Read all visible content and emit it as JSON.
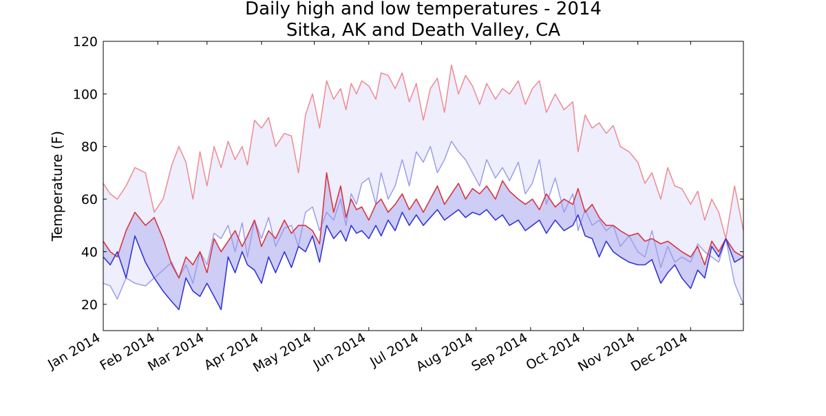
{
  "chart_data": {
    "type": "line",
    "title": "Daily high and low temperatures - 2014",
    "subtitle": "Sitka, AK and Death Valley, CA",
    "xlabel": "",
    "ylabel": "Temperature (F)",
    "xlim": [
      "2014-01-01",
      "2014-12-31"
    ],
    "ylim": [
      10,
      120
    ],
    "yticks": [
      20,
      40,
      60,
      80,
      100,
      120
    ],
    "xticks": [
      {
        "date": "2014-01-01",
        "label": "Jan 2014"
      },
      {
        "date": "2014-02-01",
        "label": "Feb 2014"
      },
      {
        "date": "2014-03-01",
        "label": "Mar 2014"
      },
      {
        "date": "2014-04-01",
        "label": "Apr 2014"
      },
      {
        "date": "2014-05-01",
        "label": "May 2014"
      },
      {
        "date": "2014-06-01",
        "label": "Jun 2014"
      },
      {
        "date": "2014-07-01",
        "label": "Jul 2014"
      },
      {
        "date": "2014-08-01",
        "label": "Aug 2014"
      },
      {
        "date": "2014-09-01",
        "label": "Sep 2014"
      },
      {
        "date": "2014-10-01",
        "label": "Oct 2014"
      },
      {
        "date": "2014-11-01",
        "label": "Nov 2014"
      },
      {
        "date": "2014-12-01",
        "label": "Dec 2014"
      }
    ],
    "grid": false,
    "colors": {
      "dv_high": "#ee8a90",
      "dv_low": "#9c9ceb",
      "dv_fill": "#eeeefc",
      "sitka_high": "#d9343f",
      "sitka_low": "#3434d6",
      "sitka_fill": "#cdcdf5"
    },
    "series": [
      {
        "key": "dv_high",
        "x": [
          "2014-01-01",
          "2014-01-05",
          "2014-01-09",
          "2014-01-14",
          "2014-01-19",
          "2014-01-25",
          "2014-01-30",
          "2014-02-04",
          "2014-02-09",
          "2014-02-13",
          "2014-02-17",
          "2014-02-21",
          "2014-02-25",
          "2014-03-01",
          "2014-03-05",
          "2014-03-09",
          "2014-03-13",
          "2014-03-17",
          "2014-03-21",
          "2014-03-24",
          "2014-03-28",
          "2014-04-01",
          "2014-04-05",
          "2014-04-09",
          "2014-04-14",
          "2014-04-18",
          "2014-04-22",
          "2014-04-26",
          "2014-04-30",
          "2014-05-04",
          "2014-05-08",
          "2014-05-12",
          "2014-05-16",
          "2014-05-19",
          "2014-05-22",
          "2014-05-25",
          "2014-05-28",
          "2014-06-01",
          "2014-06-05",
          "2014-06-08",
          "2014-06-12",
          "2014-06-16",
          "2014-06-20",
          "2014-06-24",
          "2014-06-28",
          "2014-07-02",
          "2014-07-06",
          "2014-07-10",
          "2014-07-14",
          "2014-07-18",
          "2014-07-22",
          "2014-07-26",
          "2014-07-30",
          "2014-08-03",
          "2014-08-07",
          "2014-08-12",
          "2014-08-16",
          "2014-08-20",
          "2014-08-25",
          "2014-08-29",
          "2014-09-02",
          "2014-09-06",
          "2014-09-10",
          "2014-09-15",
          "2014-09-20",
          "2014-09-25",
          "2014-09-28",
          "2014-10-02",
          "2014-10-06",
          "2014-10-10",
          "2014-10-14",
          "2014-10-18",
          "2014-10-22",
          "2014-10-27",
          "2014-11-01",
          "2014-11-05",
          "2014-11-09",
          "2014-11-14",
          "2014-11-18",
          "2014-11-22",
          "2014-11-26",
          "2014-12-01",
          "2014-12-05",
          "2014-12-09",
          "2014-12-13",
          "2014-12-17",
          "2014-12-21",
          "2014-12-26",
          "2014-12-31"
        ],
        "y": [
          66,
          62,
          60,
          65,
          72,
          70,
          55,
          60,
          73,
          80,
          74,
          60,
          78,
          65,
          80,
          72,
          82,
          75,
          80,
          73,
          90,
          87,
          91,
          80,
          85,
          84,
          70,
          92,
          100,
          87,
          105,
          98,
          102,
          94,
          104,
          100,
          105,
          103,
          98,
          108,
          107,
          102,
          108,
          97,
          104,
          90,
          102,
          106,
          93,
          111,
          100,
          107,
          103,
          96,
          104,
          98,
          102,
          100,
          105,
          96,
          102,
          105,
          93,
          100,
          94,
          97,
          78,
          92,
          87,
          89,
          85,
          88,
          80,
          78,
          74,
          66,
          70,
          60,
          72,
          65,
          64,
          58,
          63,
          52,
          60,
          55,
          45,
          65,
          48
        ]
      },
      {
        "key": "dv_low",
        "x": [
          "2014-01-01",
          "2014-01-05",
          "2014-01-09",
          "2014-01-14",
          "2014-01-19",
          "2014-01-25",
          "2014-01-30",
          "2014-02-04",
          "2014-02-09",
          "2014-02-13",
          "2014-02-17",
          "2014-02-21",
          "2014-02-25",
          "2014-03-01",
          "2014-03-05",
          "2014-03-09",
          "2014-03-13",
          "2014-03-17",
          "2014-03-21",
          "2014-03-24",
          "2014-03-28",
          "2014-04-01",
          "2014-04-05",
          "2014-04-09",
          "2014-04-14",
          "2014-04-18",
          "2014-04-22",
          "2014-04-26",
          "2014-04-30",
          "2014-05-04",
          "2014-05-08",
          "2014-05-12",
          "2014-05-16",
          "2014-05-19",
          "2014-05-22",
          "2014-05-25",
          "2014-05-28",
          "2014-06-01",
          "2014-06-05",
          "2014-06-08",
          "2014-06-12",
          "2014-06-16",
          "2014-06-20",
          "2014-06-24",
          "2014-06-28",
          "2014-07-02",
          "2014-07-06",
          "2014-07-10",
          "2014-07-14",
          "2014-07-18",
          "2014-07-22",
          "2014-07-26",
          "2014-07-30",
          "2014-08-03",
          "2014-08-07",
          "2014-08-12",
          "2014-08-16",
          "2014-08-20",
          "2014-08-25",
          "2014-08-29",
          "2014-09-02",
          "2014-09-06",
          "2014-09-10",
          "2014-09-15",
          "2014-09-20",
          "2014-09-25",
          "2014-09-28",
          "2014-10-02",
          "2014-10-06",
          "2014-10-10",
          "2014-10-14",
          "2014-10-18",
          "2014-10-22",
          "2014-10-27",
          "2014-11-01",
          "2014-11-05",
          "2014-11-09",
          "2014-11-14",
          "2014-11-18",
          "2014-11-22",
          "2014-11-26",
          "2014-12-01",
          "2014-12-05",
          "2014-12-09",
          "2014-12-13",
          "2014-12-17",
          "2014-12-21",
          "2014-12-26",
          "2014-12-31"
        ],
        "y": [
          28,
          27,
          22,
          30,
          28,
          27,
          30,
          33,
          36,
          30,
          35,
          28,
          40,
          35,
          47,
          45,
          50,
          40,
          51,
          38,
          52,
          45,
          53,
          42,
          49,
          50,
          42,
          55,
          57,
          48,
          55,
          52,
          60,
          50,
          62,
          58,
          66,
          68,
          58,
          70,
          60,
          65,
          75,
          65,
          78,
          74,
          80,
          70,
          75,
          82,
          78,
          75,
          70,
          65,
          75,
          68,
          72,
          67,
          74,
          62,
          66,
          75,
          58,
          68,
          55,
          62,
          48,
          56,
          50,
          52,
          48,
          50,
          42,
          46,
          40,
          38,
          48,
          34,
          42,
          36,
          38,
          36,
          43,
          40,
          38,
          36,
          45,
          28,
          20
        ]
      },
      {
        "key": "sitka_high",
        "x": [
          "2014-01-01",
          "2014-01-05",
          "2014-01-09",
          "2014-01-14",
          "2014-01-19",
          "2014-01-25",
          "2014-01-30",
          "2014-02-04",
          "2014-02-09",
          "2014-02-13",
          "2014-02-17",
          "2014-02-21",
          "2014-02-25",
          "2014-03-01",
          "2014-03-05",
          "2014-03-09",
          "2014-03-13",
          "2014-03-17",
          "2014-03-21",
          "2014-03-24",
          "2014-03-28",
          "2014-04-01",
          "2014-04-05",
          "2014-04-09",
          "2014-04-14",
          "2014-04-18",
          "2014-04-22",
          "2014-04-26",
          "2014-04-30",
          "2014-05-04",
          "2014-05-08",
          "2014-05-12",
          "2014-05-16",
          "2014-05-19",
          "2014-05-22",
          "2014-05-25",
          "2014-05-28",
          "2014-06-01",
          "2014-06-05",
          "2014-06-08",
          "2014-06-12",
          "2014-06-16",
          "2014-06-20",
          "2014-06-24",
          "2014-06-28",
          "2014-07-02",
          "2014-07-06",
          "2014-07-10",
          "2014-07-14",
          "2014-07-18",
          "2014-07-22",
          "2014-07-26",
          "2014-07-30",
          "2014-08-03",
          "2014-08-07",
          "2014-08-12",
          "2014-08-16",
          "2014-08-20",
          "2014-08-25",
          "2014-08-29",
          "2014-09-02",
          "2014-09-06",
          "2014-09-10",
          "2014-09-15",
          "2014-09-20",
          "2014-09-25",
          "2014-09-28",
          "2014-10-02",
          "2014-10-06",
          "2014-10-10",
          "2014-10-14",
          "2014-10-18",
          "2014-10-22",
          "2014-10-27",
          "2014-11-01",
          "2014-11-05",
          "2014-11-09",
          "2014-11-14",
          "2014-11-18",
          "2014-11-22",
          "2014-11-26",
          "2014-12-01",
          "2014-12-05",
          "2014-12-09",
          "2014-12-13",
          "2014-12-17",
          "2014-12-21",
          "2014-12-26",
          "2014-12-31"
        ],
        "y": [
          44,
          40,
          38,
          48,
          55,
          50,
          53,
          45,
          35,
          30,
          38,
          35,
          40,
          32,
          45,
          40,
          44,
          48,
          42,
          46,
          52,
          42,
          48,
          45,
          52,
          47,
          50,
          50,
          48,
          43,
          70,
          55,
          65,
          53,
          60,
          56,
          57,
          52,
          58,
          60,
          55,
          58,
          62,
          56,
          60,
          55,
          60,
          65,
          58,
          62,
          66,
          60,
          64,
          62,
          65,
          60,
          67,
          63,
          60,
          58,
          60,
          56,
          62,
          57,
          60,
          58,
          64,
          55,
          58,
          53,
          50,
          50,
          48,
          46,
          47,
          44,
          45,
          43,
          44,
          42,
          40,
          38,
          42,
          35,
          44,
          40,
          45,
          40,
          38
        ]
      },
      {
        "key": "sitka_low",
        "x": [
          "2014-01-01",
          "2014-01-05",
          "2014-01-09",
          "2014-01-14",
          "2014-01-19",
          "2014-01-25",
          "2014-01-30",
          "2014-02-04",
          "2014-02-09",
          "2014-02-13",
          "2014-02-17",
          "2014-02-21",
          "2014-02-25",
          "2014-03-01",
          "2014-03-05",
          "2014-03-09",
          "2014-03-13",
          "2014-03-17",
          "2014-03-21",
          "2014-03-24",
          "2014-03-28",
          "2014-04-01",
          "2014-04-05",
          "2014-04-09",
          "2014-04-14",
          "2014-04-18",
          "2014-04-22",
          "2014-04-26",
          "2014-04-30",
          "2014-05-04",
          "2014-05-08",
          "2014-05-12",
          "2014-05-16",
          "2014-05-19",
          "2014-05-22",
          "2014-05-25",
          "2014-05-28",
          "2014-06-01",
          "2014-06-05",
          "2014-06-08",
          "2014-06-12",
          "2014-06-16",
          "2014-06-20",
          "2014-06-24",
          "2014-06-28",
          "2014-07-02",
          "2014-07-06",
          "2014-07-10",
          "2014-07-14",
          "2014-07-18",
          "2014-07-22",
          "2014-07-26",
          "2014-07-30",
          "2014-08-03",
          "2014-08-07",
          "2014-08-12",
          "2014-08-16",
          "2014-08-20",
          "2014-08-25",
          "2014-08-29",
          "2014-09-02",
          "2014-09-06",
          "2014-09-10",
          "2014-09-15",
          "2014-09-20",
          "2014-09-25",
          "2014-09-28",
          "2014-10-02",
          "2014-10-06",
          "2014-10-10",
          "2014-10-14",
          "2014-10-18",
          "2014-10-22",
          "2014-10-27",
          "2014-11-01",
          "2014-11-05",
          "2014-11-09",
          "2014-11-14",
          "2014-11-18",
          "2014-11-22",
          "2014-11-26",
          "2014-12-01",
          "2014-12-05",
          "2014-12-09",
          "2014-12-13",
          "2014-12-17",
          "2014-12-21",
          "2014-12-26",
          "2014-12-31"
        ],
        "y": [
          38,
          35,
          40,
          30,
          46,
          36,
          30,
          25,
          21,
          18,
          30,
          25,
          23,
          28,
          23,
          18,
          38,
          32,
          40,
          35,
          33,
          28,
          38,
          32,
          40,
          34,
          42,
          40,
          46,
          36,
          50,
          45,
          48,
          44,
          50,
          47,
          48,
          45,
          50,
          46,
          52,
          48,
          55,
          50,
          54,
          50,
          53,
          56,
          52,
          54,
          56,
          53,
          55,
          54,
          56,
          52,
          54,
          50,
          52,
          48,
          50,
          52,
          47,
          52,
          48,
          50,
          54,
          46,
          45,
          38,
          44,
          40,
          38,
          36,
          35,
          35,
          37,
          28,
          32,
          35,
          30,
          26,
          33,
          30,
          42,
          38,
          45,
          36,
          38
        ]
      }
    ]
  }
}
